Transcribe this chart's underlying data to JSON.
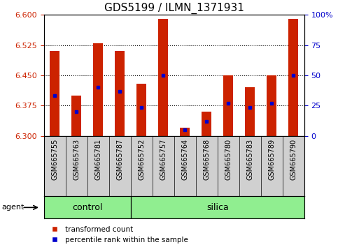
{
  "title": "GDS5199 / ILMN_1371931",
  "samples": [
    "GSM665755",
    "GSM665763",
    "GSM665781",
    "GSM665787",
    "GSM665752",
    "GSM665757",
    "GSM665764",
    "GSM665768",
    "GSM665780",
    "GSM665783",
    "GSM665789",
    "GSM665790"
  ],
  "transformed_count": [
    6.51,
    6.4,
    6.53,
    6.51,
    6.43,
    6.59,
    6.32,
    6.36,
    6.45,
    6.42,
    6.45,
    6.59
  ],
  "percentile_rank": [
    6.4,
    6.36,
    6.42,
    6.41,
    6.37,
    6.45,
    6.315,
    6.335,
    6.38,
    6.37,
    6.38,
    6.45
  ],
  "ymin": 6.3,
  "ymax": 6.6,
  "yticks_left": [
    6.3,
    6.375,
    6.45,
    6.525,
    6.6
  ],
  "yticks_right_pct": [
    0,
    25,
    50,
    75,
    100
  ],
  "bar_color": "#cc2200",
  "marker_color": "#0000cc",
  "bg_color": "#ffffff",
  "tick_bg_color": "#d0d0d0",
  "control_color": "#90EE90",
  "silica_color": "#90EE90",
  "control_indices": [
    0,
    1,
    2,
    3
  ],
  "silica_indices": [
    4,
    5,
    6,
    7,
    8,
    9,
    10,
    11
  ],
  "control_label": "control",
  "silica_label": "silica",
  "agent_label": "agent",
  "legend_bar_label": "transformed count",
  "legend_marker_label": "percentile rank within the sample",
  "bar_width": 0.45,
  "left_tick_color": "#cc2200",
  "right_tick_color": "#0000cc",
  "title_fontsize": 11,
  "tick_fontsize": 7,
  "band_fontsize": 9,
  "legend_fontsize": 7.5
}
